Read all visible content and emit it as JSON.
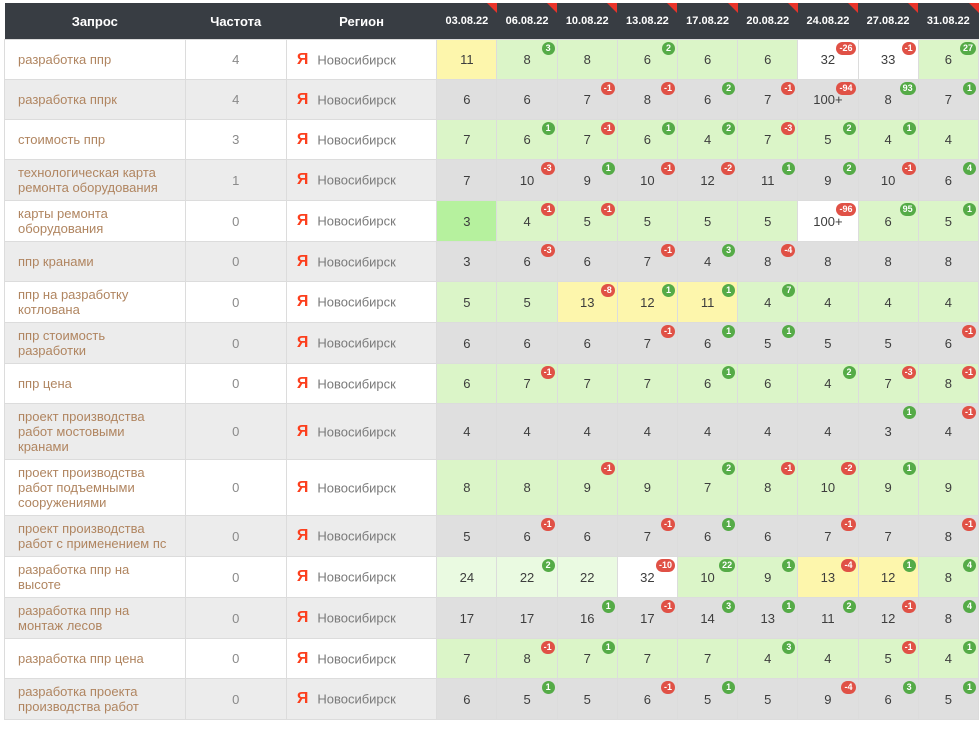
{
  "table": {
    "columns": {
      "query": "Запрос",
      "frequency": "Частота",
      "region": "Регион"
    },
    "dates": [
      "03.08.22",
      "06.08.22",
      "10.08.22",
      "13.08.22",
      "17.08.22",
      "20.08.22",
      "24.08.22",
      "27.08.22",
      "31.08.22"
    ],
    "search_engine": {
      "name": "yandex",
      "letter": "Я"
    },
    "rows": [
      {
        "query": "разработка ппр",
        "frequency": "4",
        "region": "Новосибирск",
        "positions": [
          {
            "v": "11"
          },
          {
            "v": "8",
            "d": 3
          },
          {
            "v": "8"
          },
          {
            "v": "6",
            "d": 2
          },
          {
            "v": "6"
          },
          {
            "v": "6"
          },
          {
            "v": "32",
            "d": -26
          },
          {
            "v": "33",
            "d": -1
          },
          {
            "v": "6",
            "d": 27
          }
        ]
      },
      {
        "query": "разработка ппрк",
        "frequency": "4",
        "region": "Новосибирск",
        "positions": [
          {
            "v": "6"
          },
          {
            "v": "6"
          },
          {
            "v": "7",
            "d": -1
          },
          {
            "v": "8",
            "d": -1
          },
          {
            "v": "6",
            "d": 2
          },
          {
            "v": "7",
            "d": -1
          },
          {
            "v": "100+",
            "d": -94
          },
          {
            "v": "8",
            "d": 93
          },
          {
            "v": "7",
            "d": 1
          }
        ]
      },
      {
        "query": "стоимость ппр",
        "frequency": "3",
        "region": "Новосибирск",
        "positions": [
          {
            "v": "7"
          },
          {
            "v": "6",
            "d": 1
          },
          {
            "v": "7",
            "d": -1
          },
          {
            "v": "6",
            "d": 1
          },
          {
            "v": "4",
            "d": 2
          },
          {
            "v": "7",
            "d": -3
          },
          {
            "v": "5",
            "d": 2
          },
          {
            "v": "4",
            "d": 1
          },
          {
            "v": "4"
          }
        ]
      },
      {
        "query": "технологическая карта ремонта оборудования",
        "frequency": "1",
        "region": "Новосибирск",
        "positions": [
          {
            "v": "7"
          },
          {
            "v": "10",
            "d": -3
          },
          {
            "v": "9",
            "d": 1
          },
          {
            "v": "10",
            "d": -1
          },
          {
            "v": "12",
            "d": -2
          },
          {
            "v": "11",
            "d": 1
          },
          {
            "v": "9",
            "d": 2
          },
          {
            "v": "10",
            "d": -1
          },
          {
            "v": "6",
            "d": 4
          }
        ]
      },
      {
        "query": "карты ремонта оборудования",
        "frequency": "0",
        "region": "Новосибирск",
        "positions": [
          {
            "v": "3"
          },
          {
            "v": "4",
            "d": -1
          },
          {
            "v": "5",
            "d": -1
          },
          {
            "v": "5"
          },
          {
            "v": "5"
          },
          {
            "v": "5"
          },
          {
            "v": "100+",
            "d": -96
          },
          {
            "v": "6",
            "d": 95
          },
          {
            "v": "5",
            "d": 1
          }
        ]
      },
      {
        "query": "ппр кранами",
        "frequency": "0",
        "region": "Новосибирск",
        "positions": [
          {
            "v": "3"
          },
          {
            "v": "6",
            "d": -3
          },
          {
            "v": "6"
          },
          {
            "v": "7",
            "d": -1
          },
          {
            "v": "4",
            "d": 3
          },
          {
            "v": "8",
            "d": -4
          },
          {
            "v": "8"
          },
          {
            "v": "8"
          },
          {
            "v": "8"
          }
        ]
      },
      {
        "query": "ппр на разработку котлована",
        "frequency": "0",
        "region": "Новосибирск",
        "positions": [
          {
            "v": "5"
          },
          {
            "v": "5"
          },
          {
            "v": "13",
            "d": -8
          },
          {
            "v": "12",
            "d": 1
          },
          {
            "v": "11",
            "d": 1
          },
          {
            "v": "4",
            "d": 7
          },
          {
            "v": "4"
          },
          {
            "v": "4"
          },
          {
            "v": "4"
          }
        ]
      },
      {
        "query": "ппр стоимость разработки",
        "frequency": "0",
        "region": "Новосибирск",
        "positions": [
          {
            "v": "6"
          },
          {
            "v": "6"
          },
          {
            "v": "6"
          },
          {
            "v": "7",
            "d": -1
          },
          {
            "v": "6",
            "d": 1
          },
          {
            "v": "5",
            "d": 1
          },
          {
            "v": "5"
          },
          {
            "v": "5"
          },
          {
            "v": "6",
            "d": -1
          }
        ]
      },
      {
        "query": "ппр цена",
        "frequency": "0",
        "region": "Новосибирск",
        "positions": [
          {
            "v": "6"
          },
          {
            "v": "7",
            "d": -1
          },
          {
            "v": "7"
          },
          {
            "v": "7"
          },
          {
            "v": "6",
            "d": 1
          },
          {
            "v": "6"
          },
          {
            "v": "4",
            "d": 2
          },
          {
            "v": "7",
            "d": -3
          },
          {
            "v": "8",
            "d": -1
          }
        ]
      },
      {
        "query": "проект производства работ мостовыми кранами",
        "frequency": "0",
        "region": "Новосибирск",
        "positions": [
          {
            "v": "4"
          },
          {
            "v": "4"
          },
          {
            "v": "4"
          },
          {
            "v": "4"
          },
          {
            "v": "4"
          },
          {
            "v": "4"
          },
          {
            "v": "4"
          },
          {
            "v": "3",
            "d": 1
          },
          {
            "v": "4",
            "d": -1
          }
        ]
      },
      {
        "query": "проект производства работ подъемными сооружениями",
        "frequency": "0",
        "region": "Новосибирск",
        "positions": [
          {
            "v": "8"
          },
          {
            "v": "8"
          },
          {
            "v": "9",
            "d": -1
          },
          {
            "v": "9"
          },
          {
            "v": "7",
            "d": 2
          },
          {
            "v": "8",
            "d": -1
          },
          {
            "v": "10",
            "d": -2
          },
          {
            "v": "9",
            "d": 1
          },
          {
            "v": "9"
          }
        ]
      },
      {
        "query": "проект производства работ с применением пс",
        "frequency": "0",
        "region": "Новосибирск",
        "positions": [
          {
            "v": "5"
          },
          {
            "v": "6",
            "d": -1
          },
          {
            "v": "6"
          },
          {
            "v": "7",
            "d": -1
          },
          {
            "v": "6",
            "d": 1
          },
          {
            "v": "6"
          },
          {
            "v": "7",
            "d": -1
          },
          {
            "v": "7"
          },
          {
            "v": "8",
            "d": -1
          }
        ]
      },
      {
        "query": "разработка ппр на высоте",
        "frequency": "0",
        "region": "Новосибирск",
        "positions": [
          {
            "v": "24"
          },
          {
            "v": "22",
            "d": 2
          },
          {
            "v": "22"
          },
          {
            "v": "32",
            "d": -10
          },
          {
            "v": "10",
            "d": 22
          },
          {
            "v": "9",
            "d": 1
          },
          {
            "v": "13",
            "d": -4
          },
          {
            "v": "12",
            "d": 1
          },
          {
            "v": "8",
            "d": 4
          }
        ]
      },
      {
        "query": "разработка ппр на монтаж лесов",
        "frequency": "0",
        "region": "Новосибирск",
        "positions": [
          {
            "v": "17"
          },
          {
            "v": "17"
          },
          {
            "v": "16",
            "d": 1
          },
          {
            "v": "17",
            "d": -1
          },
          {
            "v": "14",
            "d": 3
          },
          {
            "v": "13",
            "d": 1
          },
          {
            "v": "11",
            "d": 2
          },
          {
            "v": "12",
            "d": -1
          },
          {
            "v": "8",
            "d": 4
          }
        ]
      },
      {
        "query": "разработка ппр цена",
        "frequency": "0",
        "region": "Новосибирск",
        "positions": [
          {
            "v": "7"
          },
          {
            "v": "8",
            "d": -1
          },
          {
            "v": "7",
            "d": 1
          },
          {
            "v": "7"
          },
          {
            "v": "7"
          },
          {
            "v": "4",
            "d": 3
          },
          {
            "v": "4"
          },
          {
            "v": "5",
            "d": -1
          },
          {
            "v": "4",
            "d": 1
          }
        ]
      },
      {
        "query": "разработка проекта производства работ",
        "frequency": "0",
        "region": "Новосибирск",
        "positions": [
          {
            "v": "6"
          },
          {
            "v": "5",
            "d": 1
          },
          {
            "v": "5"
          },
          {
            "v": "6",
            "d": -1
          },
          {
            "v": "5",
            "d": 1
          },
          {
            "v": "5"
          },
          {
            "v": "9",
            "d": -4
          },
          {
            "v": "6",
            "d": 3
          },
          {
            "v": "5",
            "d": 1
          }
        ]
      }
    ]
  },
  "colors": {
    "header_bg": "#383d43",
    "flag_red": "#e8332a",
    "yandex_red": "#fc3f1d",
    "badge_up": "#55ab47",
    "badge_down": "#e05146",
    "pos_top3": "#b6f19e",
    "pos_top10": "#dbf5c8",
    "pos_top20": "#fdf6ac",
    "pos_top30": "#eafae1",
    "keyword_text": "#b08560"
  }
}
